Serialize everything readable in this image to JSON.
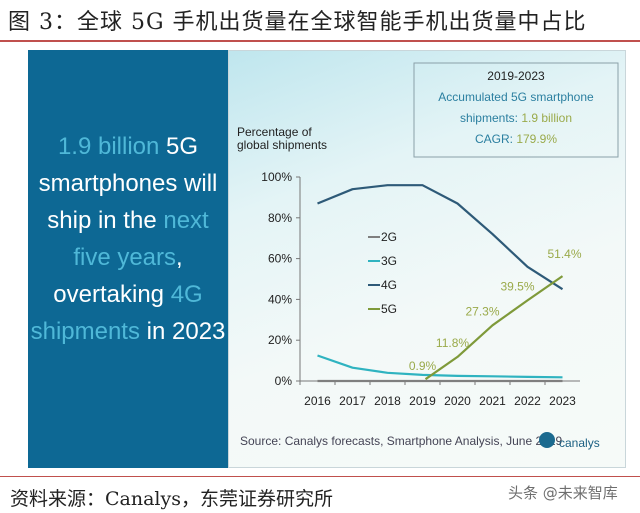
{
  "title": "图 3：全球 5G 手机出货量在全球智能手机出货量中占比",
  "source_cn": "资料来源：Canalys，东莞证券研究所",
  "watermark": "头条 @未来智库",
  "headline": {
    "p1": "1.9 billion",
    "p2": " 5G smartphones will ship in the ",
    "p3": "next five years",
    "p4": ", overtaking ",
    "p5": "4G shipments",
    "p6": " in 2023"
  },
  "infobox": {
    "line1": "2019-2023",
    "line2": "Accumulated 5G smartphone",
    "line3a": "shipments: ",
    "line3b": "1.9 billion",
    "line4a": "CAGR: ",
    "line4b": "179.9%"
  },
  "chart_source": "Source: Canalys forecasts, Smartphone Analysis, June 2019",
  "logo": "canalys",
  "colors": {
    "2G": "#7f7f7f",
    "3G": "#2fb3c0",
    "4G": "#2e5a78",
    "5G": "#7f9a3a",
    "left_panel": "#0d6894",
    "highlight": "#4fb8d8"
  },
  "chart_data": {
    "type": "line",
    "ylabel": "Percentage of global shipments",
    "xlabel": "",
    "categories": [
      "2016",
      "2017",
      "2018",
      "2019",
      "2020",
      "2021",
      "2022",
      "2023"
    ],
    "ylim": [
      0,
      100
    ],
    "yticks": [
      "0%",
      "20%",
      "40%",
      "60%",
      "80%",
      "100%"
    ],
    "legend_position": "center-left",
    "grid": false,
    "series": [
      {
        "name": "2G",
        "values": [
          0,
          0,
          0,
          0,
          0,
          0,
          0,
          0
        ]
      },
      {
        "name": "3G",
        "values": [
          12.5,
          6.5,
          4,
          3,
          2.5,
          2.3,
          2,
          1.8
        ]
      },
      {
        "name": "4G",
        "values": [
          87,
          94,
          96,
          96,
          87,
          72,
          56,
          45
        ]
      },
      {
        "name": "5G",
        "values": [
          null,
          null,
          null,
          0.9,
          11.8,
          27.3,
          39.5,
          51.4
        ]
      }
    ],
    "data_labels": {
      "5G": [
        "",
        "",
        "",
        "0.9%",
        "11.8%",
        "27.3%",
        "39.5%",
        "51.4%"
      ]
    }
  }
}
